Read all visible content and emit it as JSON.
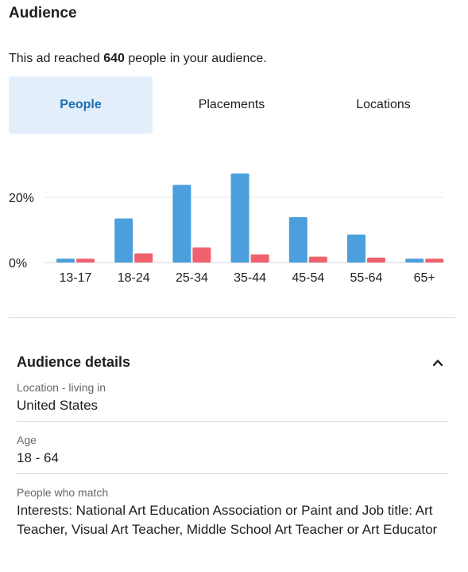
{
  "header": {
    "title": "Audience"
  },
  "reach": {
    "prefix": "This ad reached ",
    "count": "640",
    "suffix": " people in your audience."
  },
  "tabs": [
    {
      "label": "People",
      "active": true
    },
    {
      "label": "Placements",
      "active": false
    },
    {
      "label": "Locations",
      "active": false
    }
  ],
  "chart_data": {
    "type": "bar",
    "categories": [
      "13-17",
      "18-24",
      "25-34",
      "35-44",
      "45-54",
      "55-64",
      "65+"
    ],
    "series": [
      {
        "color": "#4a9fdc",
        "values": [
          1.2,
          13.5,
          23.8,
          27.3,
          13.9,
          8.6,
          1.2
        ]
      },
      {
        "color": "#f0616e",
        "values": [
          1.2,
          2.8,
          4.6,
          2.5,
          1.8,
          1.5,
          1.2
        ]
      }
    ],
    "yticks": [
      0,
      20
    ],
    "ytick_labels": [
      "0%",
      "20%"
    ],
    "ylim": [
      0,
      30
    ],
    "grid": true
  },
  "details": {
    "title": "Audience details",
    "fields": [
      {
        "label": "Location - living in",
        "value": "United States"
      },
      {
        "label": "Age",
        "value": "18 - 64"
      },
      {
        "label": "People who match",
        "value": "Interests: National Art Education Association or Paint and Job title: Art Teacher, Visual Art Teacher, Middle School Art Teacher or Art Educator"
      }
    ]
  }
}
